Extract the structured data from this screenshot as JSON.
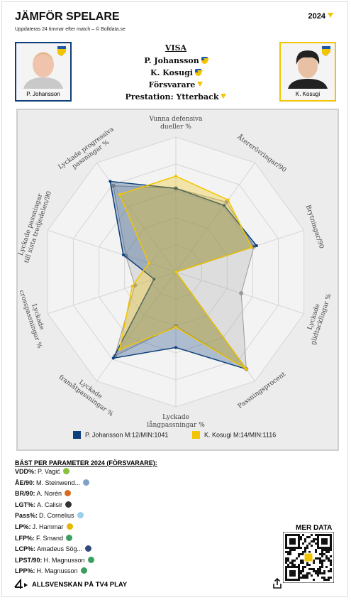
{
  "header": {
    "title": "JÄMFÖR SPELARE",
    "subtitle": "Uppdateras 24 timmar efter match – © Bolldata.se",
    "season": "2024"
  },
  "players": [
    {
      "name": "P. Johansson"
    },
    {
      "name": "K. Kosugi"
    }
  ],
  "selection": {
    "heading": "VISA",
    "items": [
      "P. Johansson",
      "K. Kosugi",
      "Försvarare",
      "Prestation: Ytterback"
    ]
  },
  "chart_data": {
    "type": "radar",
    "axes": [
      [
        "Vunna defensiva",
        "dueller %"
      ],
      [
        "Återerövringar/90"
      ],
      [
        "Brytningar/90"
      ],
      [
        "Lyckade",
        "glidtacklingar %"
      ],
      [
        "Passningsprocent"
      ],
      [
        "Lyckade",
        "långpassningar %"
      ],
      [
        "Lyckade",
        "framåtpassningar %"
      ],
      [
        "Lyckade",
        "crosspassningar %"
      ],
      [
        "Lyckade passningar",
        "till sista tredjedelen/90"
      ],
      [
        "Lyckade progressiva",
        "passningar %"
      ]
    ],
    "rlim": [
      0,
      100
    ],
    "rticks": [
      20,
      40,
      60,
      80,
      100
    ],
    "grid": true,
    "series": [
      {
        "color": "#9a9a9a",
        "values": [
          62,
          64,
          61,
          51,
          89,
          40,
          77,
          32,
          39,
          79
        ]
      },
      {
        "name": "P. Johansson M:12/MIN:1041",
        "color": "#0d3f7a",
        "values": [
          62,
          61,
          63,
          0,
          89,
          56,
          79,
          17,
          41,
          83
        ]
      },
      {
        "name": "K. Kosugi M:14/MIN:1116",
        "color": "#f2c500",
        "values": [
          71,
          66,
          59,
          0,
          89,
          41,
          71,
          34,
          21,
          71
        ]
      }
    ]
  },
  "best": {
    "title": "BÄST PER PARAMETER 2024 (FÖRSVARARE):",
    "rows": [
      [
        "VDD%:",
        "P. Vagić"
      ],
      [
        "ÅE/90:",
        "M. Steinwend..."
      ],
      [
        "BR/90:",
        "A. Norén"
      ],
      [
        "LGT%:",
        "A. Calisir"
      ],
      [
        "Pass%:",
        "D. Cornelius"
      ],
      [
        "LP%:",
        "J. Hammar"
      ],
      [
        "LFP%:",
        "F. Smand"
      ],
      [
        "LCP%:",
        "Amadeus Sög..."
      ],
      [
        "LPST/90:",
        "H. Magnusson"
      ],
      [
        "LPP%:",
        "H. Magnusson"
      ]
    ]
  },
  "footer": {
    "qr_title": "MER DATA",
    "link": "ALLSVENSKAN PÅ TV4 PLAY"
  }
}
